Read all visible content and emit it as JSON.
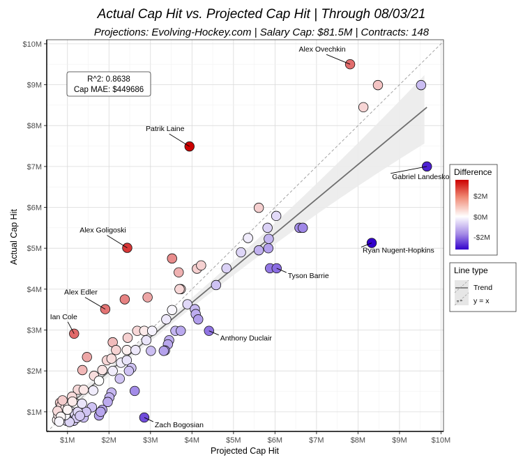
{
  "chart_data": {
    "type": "scatter",
    "title": "Actual Cap Hit vs. Projected Cap Hit | Through 08/03/21",
    "subtitle": "Projections: Evolving-Hockey.com | Salary Cap: $81.5M | Contracts: 148",
    "xlabel": "Projected Cap Hit",
    "ylabel": "Actual Cap Hit",
    "xlim": [
      0.5,
      10.06
    ],
    "ylim": [
      0.52,
      10.1
    ],
    "x_ticks": [
      1,
      2,
      3,
      4,
      5,
      6,
      7,
      8,
      9,
      10
    ],
    "x_tick_labels": [
      "$1M",
      "$2M",
      "$3M",
      "$4M",
      "$5M",
      "$6M",
      "$7M",
      "$8M",
      "$9M",
      "$10M"
    ],
    "y_ticks": [
      1,
      2,
      3,
      4,
      5,
      6,
      7,
      8,
      9,
      10
    ],
    "y_tick_labels": [
      "$1M",
      "$2M",
      "$3M",
      "$4M",
      "$5M",
      "$6M",
      "$7M",
      "$8M",
      "$9M",
      "$10M"
    ],
    "units": "millions USD",
    "grid": true,
    "stats": {
      "r2": "R^2: 0.8638",
      "mae": "Cap MAE: $449686"
    },
    "trend": {
      "slope": 0.844,
      "intercept": 0.295,
      "x_range": [
        0.7,
        9.66
      ]
    },
    "labeled_points": [
      {
        "name": "Alex Ovechkin",
        "x": 7.81,
        "y": 9.5
      },
      {
        "name": "Patrik Laine",
        "x": 3.94,
        "y": 7.49
      },
      {
        "name": "Gabriel Landeskog",
        "x": 9.66,
        "y": 7.0
      },
      {
        "name": "Ryan Nugent-Hopkins",
        "x": 8.33,
        "y": 5.13
      },
      {
        "name": "Alex Goligoski",
        "x": 2.44,
        "y": 5.01
      },
      {
        "name": "Tyson Barrie",
        "x": 6.04,
        "y": 4.51
      },
      {
        "name": "Alex Edler",
        "x": 1.91,
        "y": 3.51
      },
      {
        "name": "Ian Cole",
        "x": 1.16,
        "y": 2.91
      },
      {
        "name": "Anthony Duclair",
        "x": 4.41,
        "y": 2.98
      },
      {
        "name": "Zach Bogosian",
        "x": 2.85,
        "y": 0.86
      }
    ],
    "points": [
      [
        8.48,
        8.99
      ],
      [
        8.13,
        8.45
      ],
      [
        9.52,
        8.99
      ],
      [
        5.61,
        5.99
      ],
      [
        6.03,
        5.79
      ],
      [
        5.82,
        5.5
      ],
      [
        6.59,
        5.5
      ],
      [
        6.67,
        5.5
      ],
      [
        5.35,
        5.25
      ],
      [
        5.85,
        5.23
      ],
      [
        5.18,
        4.9
      ],
      [
        5.61,
        4.95
      ],
      [
        5.84,
        5.0
      ],
      [
        3.52,
        4.75
      ],
      [
        3.68,
        4.41
      ],
      [
        4.12,
        4.5
      ],
      [
        4.22,
        4.58
      ],
      [
        4.83,
        4.51
      ],
      [
        5.88,
        4.51
      ],
      [
        3.73,
        4.0
      ],
      [
        3.7,
        4.0
      ],
      [
        4.58,
        4.1
      ],
      [
        2.38,
        3.75
      ],
      [
        2.93,
        3.8
      ],
      [
        3.52,
        3.49
      ],
      [
        3.89,
        3.63
      ],
      [
        4.07,
        3.51
      ],
      [
        4.09,
        3.39
      ],
      [
        4.15,
        3.26
      ],
      [
        3.38,
        3.26
      ],
      [
        3.6,
        2.98
      ],
      [
        3.73,
        2.98
      ],
      [
        3.45,
        2.75
      ],
      [
        3.42,
        2.65
      ],
      [
        3.35,
        2.5
      ],
      [
        2.68,
        2.98
      ],
      [
        2.85,
        2.98
      ],
      [
        3.04,
        2.98
      ],
      [
        2.09,
        2.7
      ],
      [
        2.45,
        2.81
      ],
      [
        2.9,
        2.75
      ],
      [
        3.01,
        2.49
      ],
      [
        3.32,
        2.49
      ],
      [
        2.17,
        2.51
      ],
      [
        2.43,
        2.51
      ],
      [
        2.64,
        2.51
      ],
      [
        1.47,
        2.34
      ],
      [
        1.95,
        2.26
      ],
      [
        2.06,
        2.3
      ],
      [
        2.29,
        2.2
      ],
      [
        2.43,
        2.26
      ],
      [
        2.54,
        2.07
      ],
      [
        2.48,
        2.0
      ],
      [
        1.36,
        2.02
      ],
      [
        1.84,
        2.02
      ],
      [
        1.64,
        1.88
      ],
      [
        2.09,
        2.0
      ],
      [
        1.76,
        1.76
      ],
      [
        2.26,
        1.81
      ],
      [
        1.62,
        1.52
      ],
      [
        1.25,
        1.54
      ],
      [
        1.39,
        1.54
      ],
      [
        2.62,
        1.51
      ],
      [
        2.06,
        1.47
      ],
      [
        2.01,
        1.35
      ],
      [
        1.97,
        1.24
      ],
      [
        1.11,
        1.37
      ],
      [
        1.59,
        1.11
      ],
      [
        1.84,
        1.05
      ],
      [
        1.76,
        0.91
      ],
      [
        1.39,
        0.86
      ],
      [
        1.8,
        1.0
      ],
      [
        1.45,
        1.0
      ],
      [
        0.75,
        0.8
      ],
      [
        0.78,
        0.92
      ],
      [
        0.8,
        1.05
      ],
      [
        0.82,
        1.22
      ],
      [
        0.85,
        1.15
      ],
      [
        0.9,
        1.0
      ],
      [
        0.92,
        0.85
      ],
      [
        0.95,
        1.1
      ],
      [
        0.98,
        0.78
      ],
      [
        1.0,
        0.95
      ],
      [
        1.02,
        1.12
      ],
      [
        1.05,
        0.82
      ],
      [
        1.08,
        1.0
      ],
      [
        1.1,
        0.9
      ],
      [
        1.13,
        1.05
      ],
      [
        1.15,
        0.78
      ],
      [
        1.18,
        0.95
      ],
      [
        1.2,
        1.2
      ],
      [
        1.22,
        0.85
      ],
      [
        0.88,
        1.28
      ],
      [
        0.76,
        1.02
      ],
      [
        1.25,
        1.0
      ],
      [
        1.3,
        0.9
      ],
      [
        1.05,
        0.75
      ],
      [
        0.95,
        0.92
      ],
      [
        0.84,
        0.88
      ],
      [
        1.12,
        1.25
      ],
      [
        1.35,
        1.2
      ],
      [
        0.8,
        0.76
      ],
      [
        1.0,
        1.05
      ]
    ],
    "color_legend": {
      "title": "Difference",
      "labels": [
        "$2M",
        "$0M",
        "-$2M"
      ],
      "values": [
        2,
        0,
        -2
      ],
      "limits": [
        -3.2,
        3.55
      ],
      "low_color": "#3300cc",
      "mid_color": "#ffffff",
      "high_color": "#cc0000"
    },
    "line_legend": {
      "title": "Line type",
      "items": [
        "Trend",
        "y = x"
      ]
    }
  }
}
